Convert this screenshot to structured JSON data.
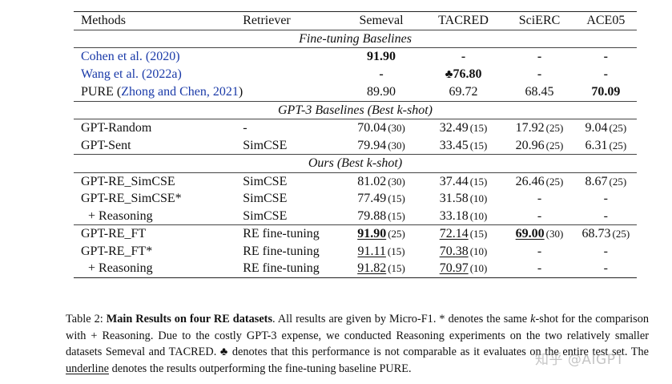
{
  "table": {
    "headers": [
      "Methods",
      "Retriever",
      "Semeval",
      "TACRED",
      "SciERC",
      "ACE05"
    ],
    "sections": [
      {
        "title": "Fine-tuning Baselines",
        "rows": [
          {
            "method": "Cohen et al. (2020)",
            "retriever": "",
            "semeval": "91.90",
            "tacred": "-",
            "scierc": "-",
            "ace05": "-"
          },
          {
            "method": "Wang et al. (2022a)",
            "retriever": "",
            "semeval": "-",
            "tacred": "76.80",
            "scierc": "-",
            "ace05": "-"
          },
          {
            "method_prefix": "PURE (",
            "method_cite": "Zhong and Chen, 2021",
            "method_suffix": ")",
            "retriever": "",
            "semeval": "89.90",
            "tacred": "69.72",
            "scierc": "68.45",
            "ace05": "70.09"
          }
        ]
      },
      {
        "title_prefix": "GPT-3 Baselines (Best ",
        "title_k": "k",
        "title_suffix": "-shot)",
        "rows": [
          {
            "method": "GPT-Random",
            "retriever": "-",
            "semeval": "70.04",
            "semeval_k": "(30)",
            "tacred": "32.49",
            "tacred_k": "(15)",
            "scierc": "17.92",
            "scierc_k": "(25)",
            "ace05": "9.04",
            "ace05_k": "(25)"
          },
          {
            "method": "GPT-Sent",
            "retriever": "SimCSE",
            "semeval": "79.94",
            "semeval_k": "(30)",
            "tacred": "33.45",
            "tacred_k": "(15)",
            "scierc": "20.96",
            "scierc_k": "(25)",
            "ace05": "6.31",
            "ace05_k": "(25)"
          }
        ]
      },
      {
        "title_prefix": "Ours (Best ",
        "title_k": "k",
        "title_suffix": "-shot)",
        "rows": [
          {
            "method": "GPT-RE_SimCSE",
            "retriever": "SimCSE",
            "semeval": "81.02",
            "semeval_k": "(30)",
            "tacred": "37.44",
            "tacred_k": "(15)",
            "scierc": "26.46",
            "scierc_k": "(25)",
            "ace05": "8.67",
            "ace05_k": "(25)"
          },
          {
            "method": "GPT-RE_SimCSE*",
            "retriever": "SimCSE",
            "semeval": "77.49",
            "semeval_k": "(15)",
            "tacred": "31.58",
            "tacred_k": "(10)",
            "scierc": "-",
            "ace05": "-"
          },
          {
            "method": "+ Reasoning",
            "retriever": "SimCSE",
            "semeval": "79.88",
            "semeval_k": "(15)",
            "tacred": "33.18",
            "tacred_k": "(10)",
            "scierc": "-",
            "ace05": "-"
          },
          {
            "method": "GPT-RE_FT",
            "retriever": "RE fine-tuning",
            "semeval": "91.90",
            "semeval_k": "(25)",
            "tacred": "72.14",
            "tacred_k": "(15)",
            "scierc": "69.00",
            "scierc_k": "(30)",
            "ace05": "68.73",
            "ace05_k": "(25)"
          },
          {
            "method": "GPT-RE_FT*",
            "retriever": "RE fine-tuning",
            "semeval": "91.11",
            "semeval_k": "(15)",
            "tacred": "70.38",
            "tacred_k": "(10)",
            "scierc": "-",
            "ace05": "-"
          },
          {
            "method": "+ Reasoning",
            "retriever": "RE fine-tuning",
            "semeval": "91.82",
            "semeval_k": "(15)",
            "tacred": "70.97",
            "tacred_k": "(10)",
            "scierc": "-",
            "ace05": "-"
          }
        ]
      }
    ]
  },
  "caption": {
    "label": "Table 2: ",
    "title": "Main Results on four RE datasets",
    "p1": ". All results are given by Micro-F1. * denotes the same ",
    "k1": "k",
    "p2": "-shot for the comparison with + Reasoning. Due to the costly GPT-3 expense, we conducted Reasoning experiments on the two relatively smaller datasets Semeval and TACRED. ",
    "club": "♣",
    "p3": " denotes that this performance is not comparable as it evaluates on the entire test set. The ",
    "underline_word": "underline",
    "p4": " denotes the results outperforming the fine-tuning baseline PURE."
  },
  "watermark": "知乎 @AIGPT"
}
